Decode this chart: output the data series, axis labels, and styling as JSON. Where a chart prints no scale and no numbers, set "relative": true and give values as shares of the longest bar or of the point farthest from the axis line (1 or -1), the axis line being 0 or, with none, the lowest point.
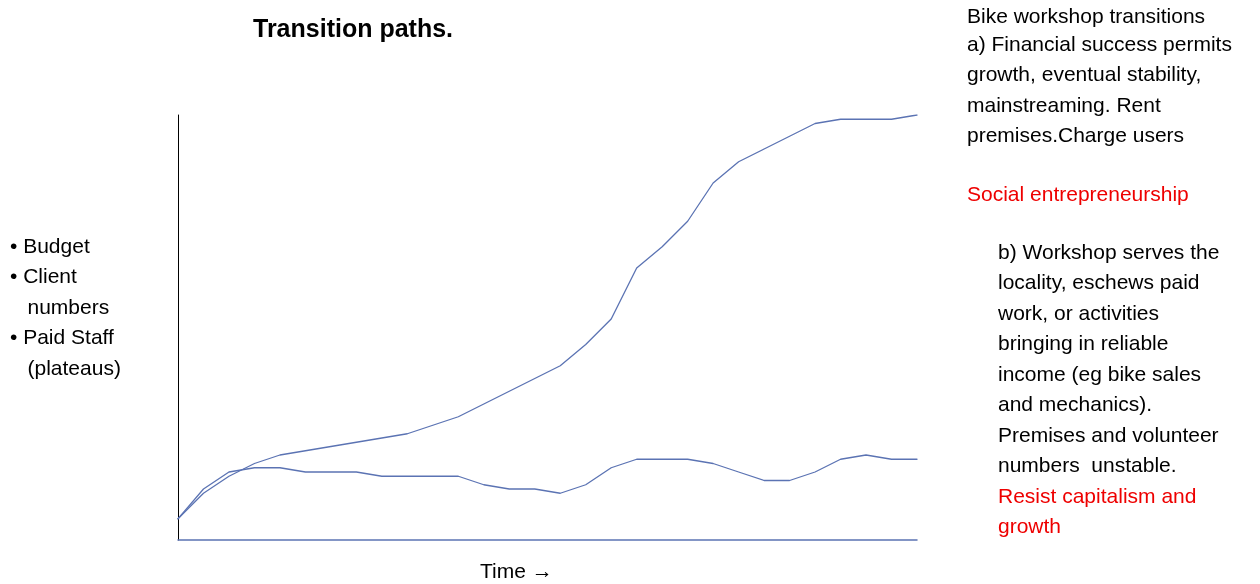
{
  "chart_data": {
    "type": "line",
    "relative": true,
    "title": "Transition paths.",
    "xlabel": "Time →",
    "ylabel": "• Budget\n• Client\n   numbers\n• Paid Staff\n   (plateaus)",
    "categories": [
      null,
      null,
      null,
      null,
      null,
      null,
      null,
      null,
      null,
      null,
      null,
      null,
      null,
      null,
      null,
      null,
      null,
      null,
      null,
      null,
      null,
      null,
      null,
      null,
      null,
      null,
      null,
      null,
      null,
      null
    ],
    "series": [
      {
        "color": "#5b73b3",
        "values": [
          0.05,
          0.11,
          0.15,
          0.18,
          0.2,
          0.21,
          0.22,
          0.23,
          0.24,
          0.25,
          0.27,
          0.29,
          0.32,
          0.35,
          0.38,
          0.41,
          0.46,
          0.52,
          0.64,
          0.69,
          0.75,
          0.84,
          0.89,
          0.92,
          0.95,
          0.98,
          0.99,
          0.99,
          0.99,
          1
        ]
      },
      {
        "color": "#5b73b3",
        "values": [
          0.05,
          0.12,
          0.16,
          0.17,
          0.17,
          0.16,
          0.16,
          0.16,
          0.15,
          0.15,
          0.15,
          0.15,
          0.13,
          0.12,
          0.12,
          0.11,
          0.13,
          0.17,
          0.19,
          0.19,
          0.19,
          0.18,
          0.16,
          0.14,
          0.14,
          0.16,
          0.19,
          0.2,
          0.19,
          0.19
        ]
      }
    ],
    "marker": "none",
    "line_style": "solid",
    "annotations": [
      "Bike workshop transitions",
      "a) Financial success permits growth, eventual stability, mainstreaming. Rent premises.Charge users",
      "Social entrepreneurship",
      "b) Workshop serves the locality, eschews paid work, or activities bringing in reliable income (eg bike sales and mechanics). Premises and volunteer numbers  unstable.",
      "Resist capitalism and growth"
    ]
  }
}
